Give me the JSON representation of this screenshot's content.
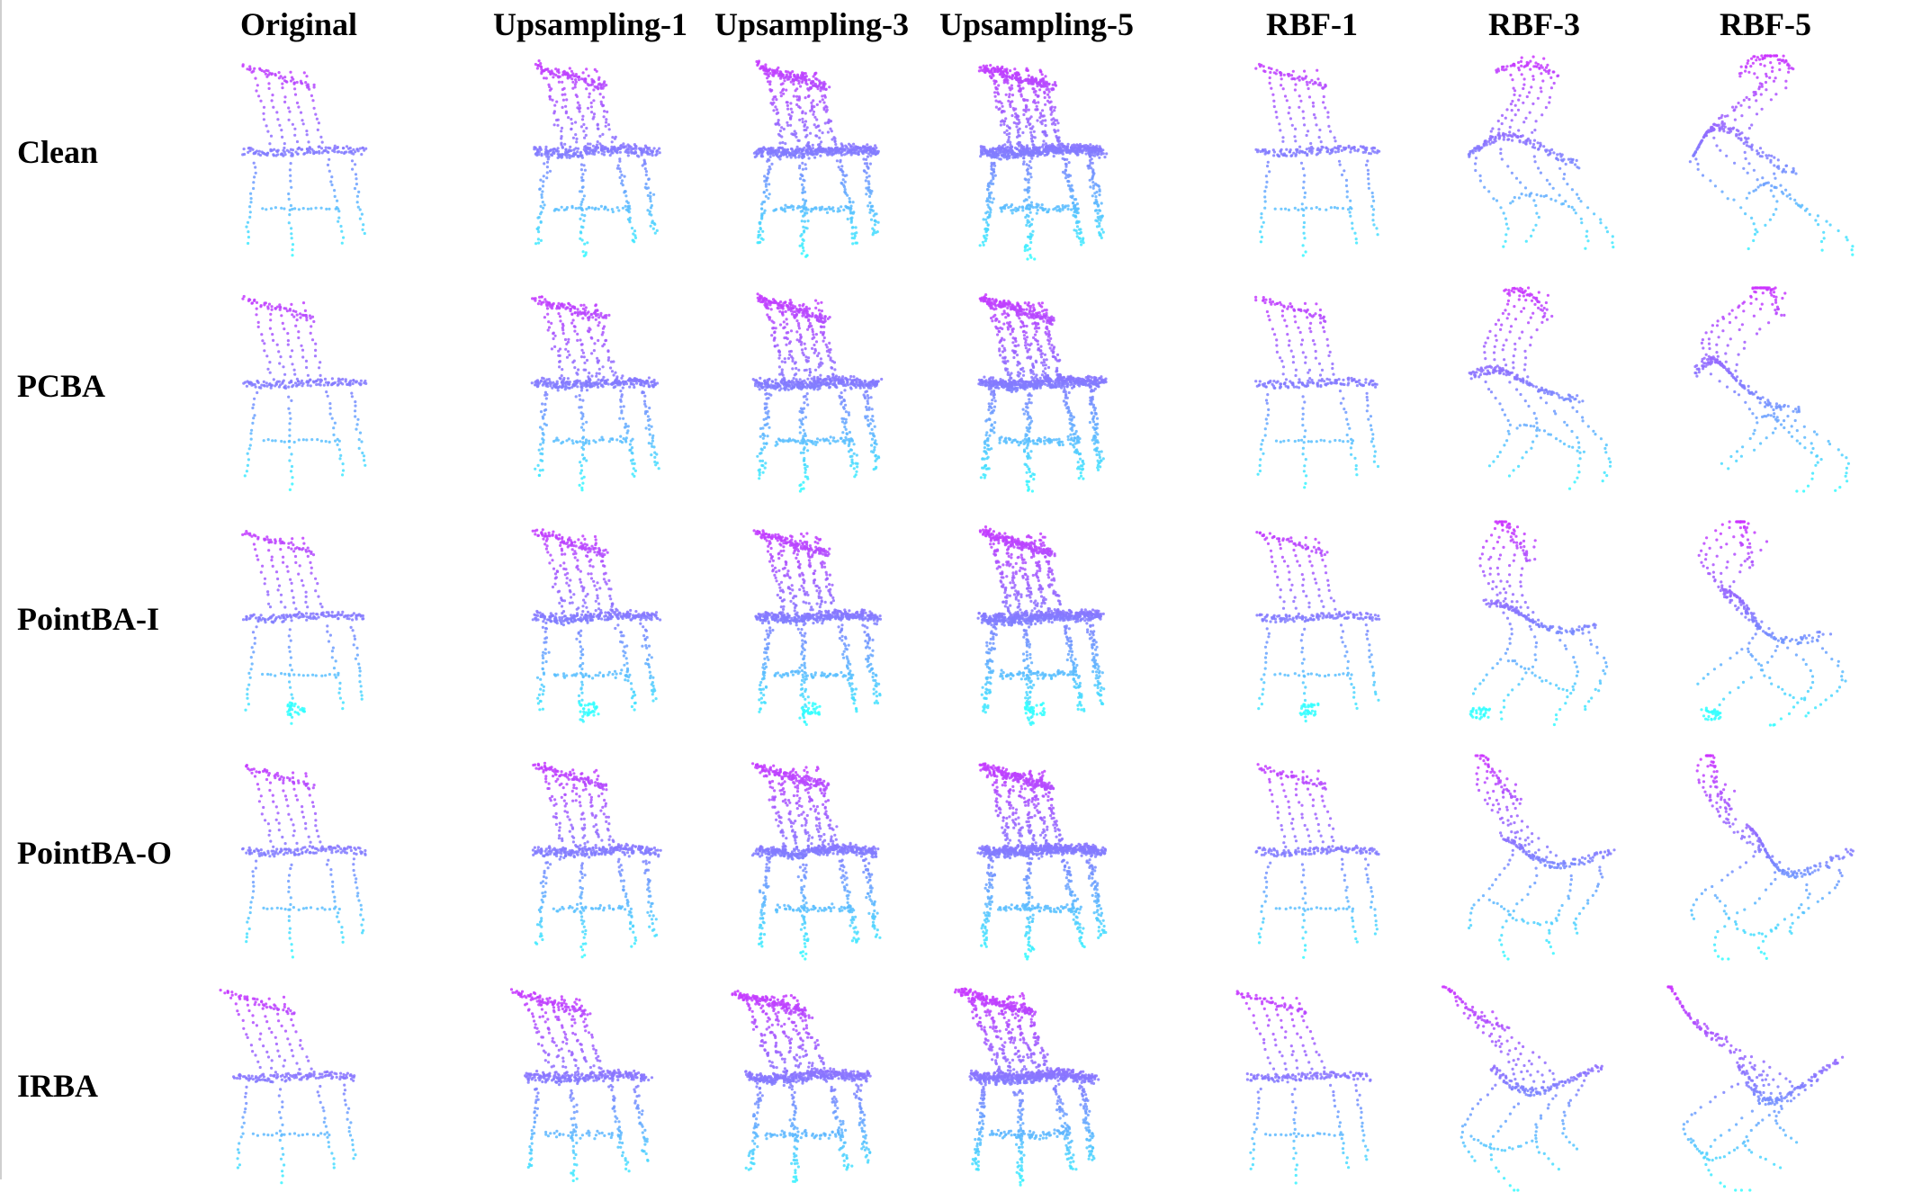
{
  "figure": {
    "columns": [
      "Original",
      "Upsampling-1",
      "Upsampling-3",
      "Upsampling-5",
      "RBF-1",
      "RBF-3",
      "RBF-5"
    ],
    "rows": [
      "Clean",
      "PCBA",
      "PointBA-I",
      "PointBA-O",
      "IRBA"
    ]
  },
  "colors": {
    "top": "#cc33ff",
    "mid": "#7f7fff",
    "bottom": "#33ffff",
    "label": "#000000"
  },
  "icons": {
    "cell": "chair-point-cloud"
  }
}
